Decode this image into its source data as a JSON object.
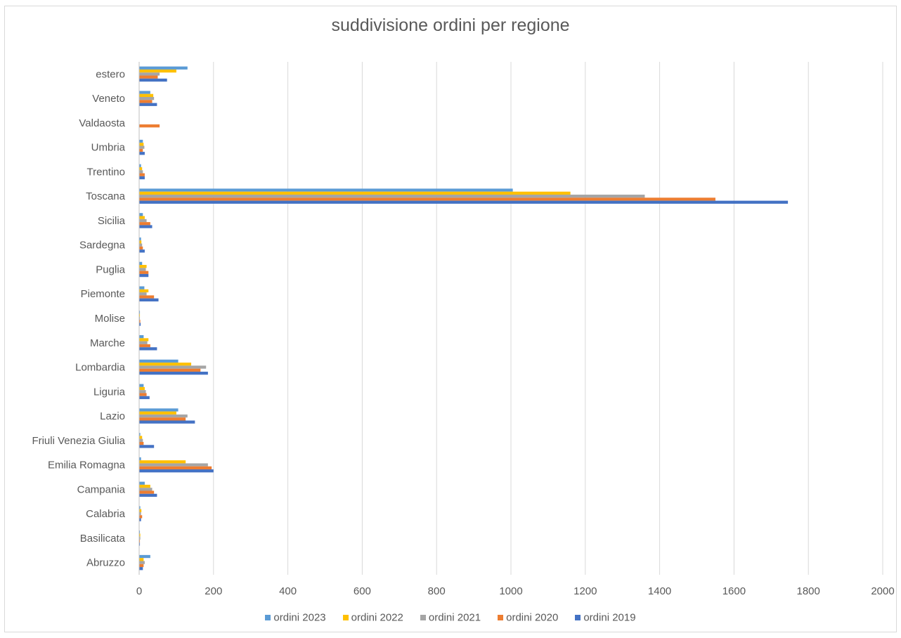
{
  "chart_data": {
    "type": "bar",
    "orientation": "horizontal",
    "title": "suddivisione ordini per regione",
    "xlabel": "",
    "ylabel": "",
    "xlim": [
      0,
      2000
    ],
    "x_ticks": [
      "0",
      "200",
      "400",
      "600",
      "800",
      "1000",
      "1200",
      "1400",
      "1600",
      "1800",
      "2000"
    ],
    "grid": "vertical",
    "legend_position": "bottom",
    "categories": [
      "Abruzzo",
      "Basilicata",
      "Calabria",
      "Campania",
      "Emilia Romagna",
      "Friuli Venezia Giulia",
      "Lazio",
      "Liguria",
      "Lombardia",
      "Marche",
      "Molise",
      "Piemonte",
      "Puglia",
      "Sardegna",
      "Sicilia",
      "Toscana",
      "Trentino",
      "Umbria",
      "Valdaosta",
      "Veneto",
      "estero"
    ],
    "series": [
      {
        "name": "ordini 2023",
        "color": "#5b9bd5",
        "values": [
          30,
          2,
          3,
          15,
          5,
          3,
          105,
          12,
          105,
          12,
          2,
          14,
          8,
          5,
          10,
          1005,
          5,
          10,
          0,
          30,
          130
        ]
      },
      {
        "name": "ordini 2022",
        "color": "#ffc000",
        "values": [
          12,
          3,
          6,
          30,
          125,
          8,
          100,
          15,
          140,
          25,
          2,
          25,
          20,
          6,
          15,
          1160,
          8,
          12,
          0,
          38,
          100
        ]
      },
      {
        "name": "ordini 2021",
        "color": "#a5a5a5",
        "values": [
          15,
          3,
          5,
          35,
          185,
          10,
          130,
          18,
          180,
          22,
          2,
          20,
          18,
          8,
          20,
          1360,
          10,
          14,
          0,
          40,
          55
        ]
      },
      {
        "name": "ordini 2020",
        "color": "#ed7d31",
        "values": [
          12,
          2,
          8,
          40,
          195,
          12,
          125,
          20,
          165,
          30,
          3,
          40,
          25,
          10,
          30,
          1550,
          15,
          10,
          55,
          35,
          50
        ]
      },
      {
        "name": "ordini 2019",
        "color": "#4472c4",
        "values": [
          10,
          2,
          5,
          48,
          200,
          40,
          150,
          28,
          185,
          48,
          4,
          52,
          25,
          15,
          35,
          1745,
          15,
          15,
          0,
          48,
          75
        ]
      }
    ]
  }
}
